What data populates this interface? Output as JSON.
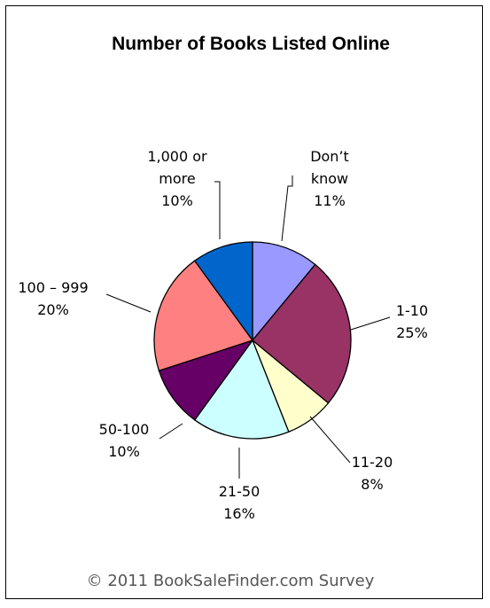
{
  "chart_data": {
    "type": "pie",
    "title": "Number of Books Listed Online",
    "slices": [
      {
        "label": [
          "Don’t",
          "know"
        ],
        "value": 11,
        "pct": "11%",
        "color": "#9999ff"
      },
      {
        "label": [
          "1-10"
        ],
        "value": 25,
        "pct": "25%",
        "color": "#993366"
      },
      {
        "label": [
          "11-20"
        ],
        "value": 8,
        "pct": "8%",
        "color": "#ffffcc"
      },
      {
        "label": [
          "21-50"
        ],
        "value": 16,
        "pct": "16%",
        "color": "#ccffff"
      },
      {
        "label": [
          "50-100"
        ],
        "value": 10,
        "pct": "10%",
        "color": "#660066"
      },
      {
        "label": [
          "100 – 999"
        ],
        "value": 20,
        "pct": "20%",
        "color": "#ff8080"
      },
      {
        "label": [
          "1,000 or",
          "more"
        ],
        "value": 10,
        "pct": "10%",
        "color": "#0066cc"
      }
    ],
    "start_angle": "12 o'clock",
    "direction": "clockwise",
    "legend": "none",
    "footer": "© 2011 BookSaleFinder.com Survey"
  }
}
